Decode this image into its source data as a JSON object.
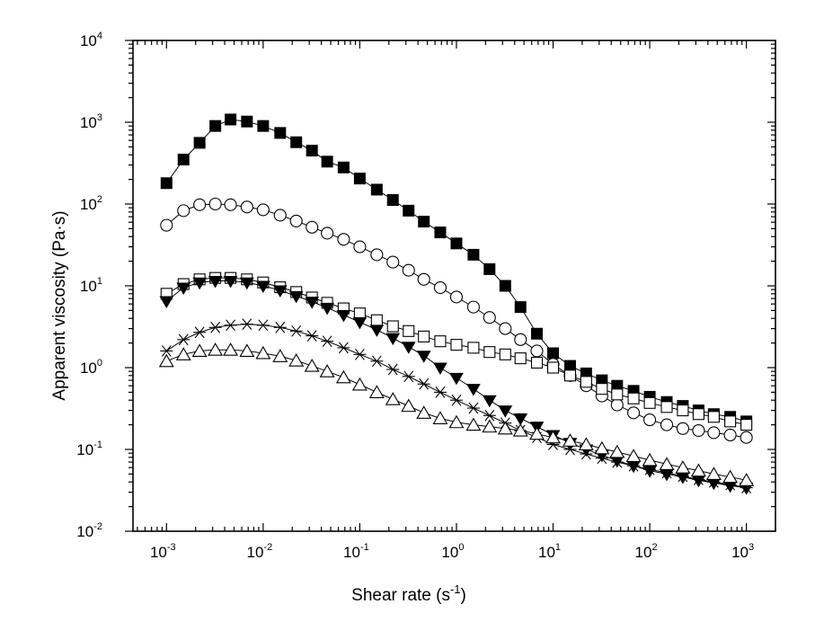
{
  "chart_data": {
    "type": "scatter",
    "title": "",
    "xlabel": {
      "main": "Shear rate (s",
      "sup": "-1",
      "close": ")"
    },
    "ylabel": "Apparent viscosity (Pa·s)",
    "xscale": "log",
    "yscale": "log",
    "xlim": [
      0.00045,
      2000
    ],
    "ylim": [
      0.01,
      10000
    ],
    "x_ticks": [
      {
        "base": "10",
        "exp": "-3"
      },
      {
        "base": "10",
        "exp": "-2"
      },
      {
        "base": "10",
        "exp": "-1"
      },
      {
        "base": "10",
        "exp": "0"
      },
      {
        "base": "10",
        "exp": "1"
      },
      {
        "base": "10",
        "exp": "2"
      },
      {
        "base": "10",
        "exp": "3"
      }
    ],
    "y_ticks": [
      {
        "base": "10",
        "exp": "-2"
      },
      {
        "base": "10",
        "exp": "-1"
      },
      {
        "base": "10",
        "exp": "0"
      },
      {
        "base": "10",
        "exp": "1"
      },
      {
        "base": "10",
        "exp": "2"
      },
      {
        "base": "10",
        "exp": "3"
      },
      {
        "base": "10",
        "exp": "4"
      }
    ],
    "series": [
      {
        "name": "filled-square",
        "marker": "square-filled",
        "x": [
          0.001,
          0.0015,
          0.0022,
          0.0032,
          0.0046,
          0.0068,
          0.01,
          0.015,
          0.022,
          0.032,
          0.046,
          0.068,
          0.1,
          0.15,
          0.22,
          0.32,
          0.46,
          0.68,
          1.0,
          1.5,
          2.2,
          3.2,
          4.6,
          6.8,
          10,
          15,
          22,
          32,
          46,
          68,
          100,
          150,
          220,
          320,
          460,
          680,
          1000
        ],
        "y": [
          180,
          350,
          560,
          900,
          1080,
          1020,
          900,
          740,
          570,
          450,
          330,
          280,
          205,
          150,
          112,
          83,
          61,
          45,
          33,
          24,
          16,
          10,
          5.5,
          2.6,
          1.5,
          1.05,
          0.85,
          0.7,
          0.6,
          0.52,
          0.44,
          0.38,
          0.34,
          0.3,
          0.27,
          0.25,
          0.22
        ]
      },
      {
        "name": "open-circle",
        "marker": "circle-open",
        "x": [
          0.001,
          0.0015,
          0.0022,
          0.0032,
          0.0046,
          0.0068,
          0.01,
          0.015,
          0.022,
          0.032,
          0.046,
          0.068,
          0.1,
          0.15,
          0.22,
          0.32,
          0.46,
          0.68,
          1.0,
          1.5,
          2.2,
          3.2,
          4.6,
          6.8,
          10,
          15,
          22,
          32,
          46,
          68,
          100,
          150,
          220,
          320,
          460,
          680,
          1000
        ],
        "y": [
          55,
          83,
          98,
          100,
          98,
          92,
          85,
          73,
          62,
          52,
          44,
          37,
          30,
          24,
          19.5,
          15.5,
          12,
          9.5,
          7.3,
          5.5,
          4.1,
          3.0,
          2.2,
          1.6,
          1.1,
          0.8,
          0.6,
          0.45,
          0.35,
          0.28,
          0.23,
          0.2,
          0.18,
          0.17,
          0.16,
          0.15,
          0.14
        ]
      },
      {
        "name": "open-square",
        "marker": "square-open",
        "x": [
          0.001,
          0.0015,
          0.0022,
          0.0032,
          0.0046,
          0.0068,
          0.01,
          0.015,
          0.022,
          0.032,
          0.046,
          0.068,
          0.1,
          0.15,
          0.22,
          0.32,
          0.46,
          0.68,
          1.0,
          1.5,
          2.2,
          3.2,
          4.6,
          6.8,
          10,
          15,
          22,
          32,
          46,
          68,
          100,
          150,
          220,
          320,
          460,
          680,
          1000
        ],
        "y": [
          8,
          10.5,
          12,
          12.5,
          12.5,
          12,
          11,
          9.6,
          8.4,
          7.2,
          6.2,
          5.3,
          4.6,
          3.8,
          3.2,
          2.8,
          2.4,
          2.1,
          1.9,
          1.75,
          1.55,
          1.45,
          1.3,
          1.15,
          1.0,
          0.8,
          0.67,
          0.55,
          0.47,
          0.42,
          0.37,
          0.33,
          0.3,
          0.27,
          0.25,
          0.22,
          0.2
        ]
      },
      {
        "name": "filled-triangle-down",
        "marker": "triangle-down-filled",
        "x": [
          0.001,
          0.0015,
          0.0022,
          0.0032,
          0.0046,
          0.0068,
          0.01,
          0.015,
          0.022,
          0.032,
          0.046,
          0.068,
          0.1,
          0.15,
          0.22,
          0.32,
          0.46,
          0.68,
          1.0,
          1.5,
          2.2,
          3.2,
          4.6,
          6.8,
          10,
          15,
          22,
          32,
          46,
          68,
          100,
          150,
          220,
          320,
          460,
          680,
          1000
        ],
        "y": [
          6.5,
          9.5,
          11,
          11.5,
          11.5,
          11,
          10,
          8.8,
          7.5,
          6.4,
          5.4,
          4.4,
          3.6,
          2.9,
          2.3,
          1.8,
          1.4,
          1.0,
          0.75,
          0.55,
          0.4,
          0.3,
          0.24,
          0.19,
          0.15,
          0.12,
          0.1,
          0.085,
          0.073,
          0.063,
          0.055,
          0.05,
          0.046,
          0.042,
          0.039,
          0.036,
          0.034
        ]
      },
      {
        "name": "asterisk",
        "marker": "asterisk",
        "x": [
          0.001,
          0.0015,
          0.0022,
          0.0032,
          0.0046,
          0.0068,
          0.01,
          0.015,
          0.022,
          0.032,
          0.046,
          0.068,
          0.1,
          0.15,
          0.22,
          0.32,
          0.46,
          0.68,
          1.0,
          1.5,
          2.2,
          3.2,
          4.6,
          6.8,
          10,
          15,
          22,
          32,
          46,
          68,
          100,
          150,
          220,
          320,
          460,
          680,
          1000
        ],
        "y": [
          1.6,
          2.2,
          2.7,
          3.1,
          3.3,
          3.4,
          3.3,
          3.1,
          2.8,
          2.45,
          2.1,
          1.75,
          1.45,
          1.2,
          0.95,
          0.78,
          0.63,
          0.5,
          0.4,
          0.32,
          0.26,
          0.21,
          0.17,
          0.14,
          0.115,
          0.1,
          0.088,
          0.078,
          0.07,
          0.063,
          0.057,
          0.052,
          0.047,
          0.043,
          0.04,
          0.037,
          0.034
        ]
      },
      {
        "name": "open-triangle-up",
        "marker": "triangle-up-open",
        "x": [
          0.001,
          0.0015,
          0.0022,
          0.0032,
          0.0046,
          0.0068,
          0.01,
          0.015,
          0.022,
          0.032,
          0.046,
          0.068,
          0.1,
          0.15,
          0.22,
          0.32,
          0.46,
          0.68,
          1.0,
          1.5,
          2.2,
          3.2,
          4.6,
          6.8,
          10,
          15,
          22,
          32,
          46,
          68,
          100,
          150,
          220,
          320,
          460,
          680,
          1000
        ],
        "y": [
          1.2,
          1.45,
          1.6,
          1.65,
          1.65,
          1.6,
          1.5,
          1.38,
          1.22,
          1.05,
          0.9,
          0.76,
          0.62,
          0.5,
          0.41,
          0.34,
          0.28,
          0.24,
          0.215,
          0.2,
          0.19,
          0.18,
          0.17,
          0.155,
          0.14,
          0.128,
          0.115,
          0.103,
          0.093,
          0.083,
          0.074,
          0.066,
          0.06,
          0.055,
          0.05,
          0.046,
          0.042
        ]
      }
    ]
  }
}
